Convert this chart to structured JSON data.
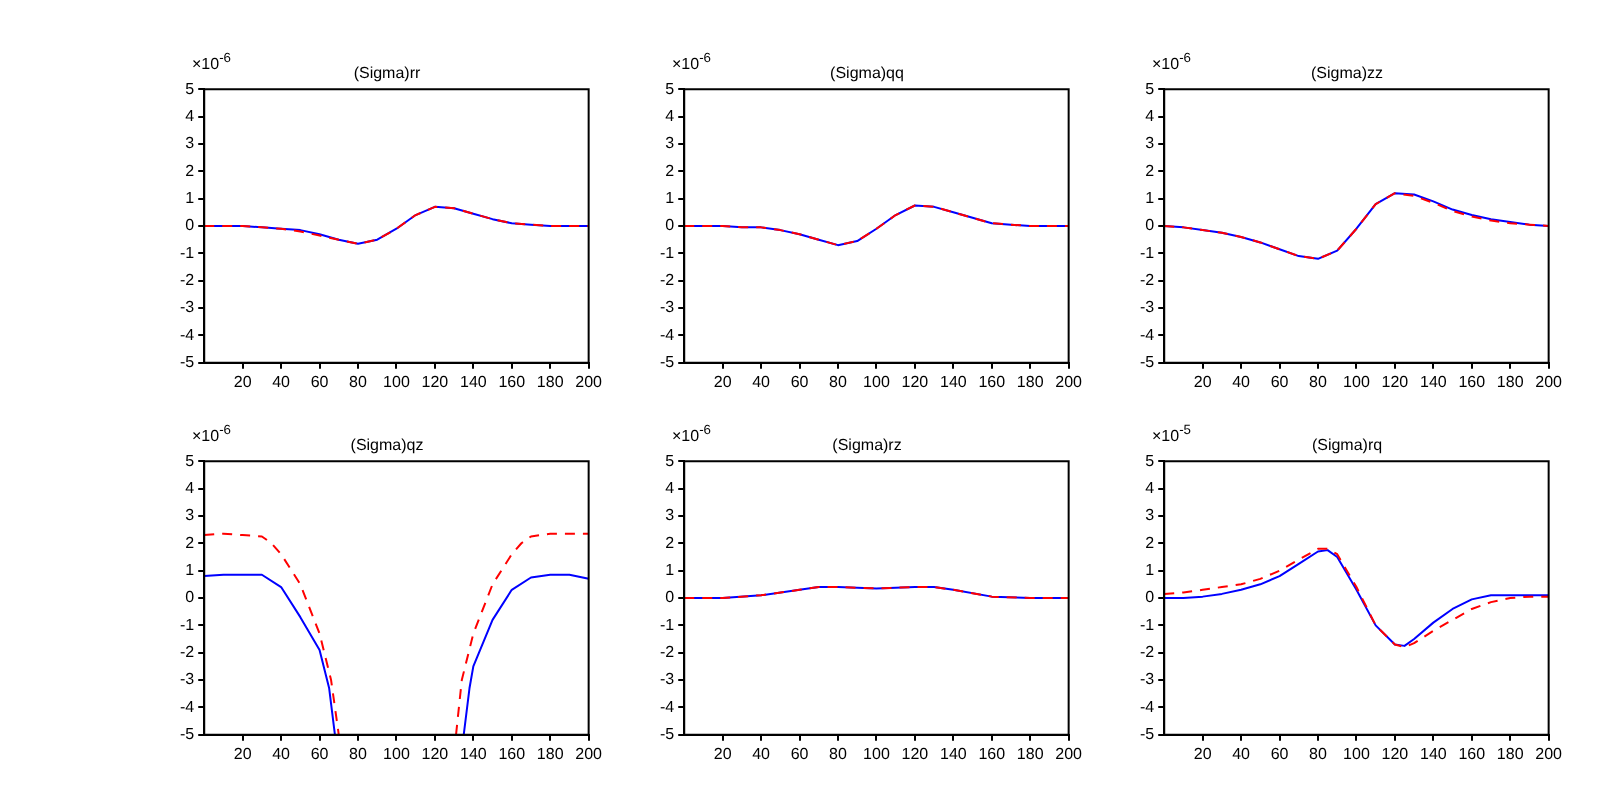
{
  "chart_data": [
    {
      "type": "line",
      "title": "(Sigma)rr",
      "annotations": [
        "×10$^{-6}$"
      ],
      "xlim": [
        0,
        200
      ],
      "xticks": [
        20,
        40,
        60,
        80,
        100,
        120,
        140,
        160,
        180,
        200
      ],
      "ylim": [
        -5,
        5
      ],
      "yticks": [
        -5,
        -4,
        -3,
        -2,
        -1,
        0,
        1,
        2,
        3,
        4,
        5
      ],
      "grid": false,
      "marker": "none",
      "x": [
        0,
        10,
        20,
        30,
        40,
        50,
        60,
        70,
        80,
        90,
        100,
        110,
        120,
        130,
        140,
        150,
        160,
        170,
        180,
        190,
        200
      ],
      "series": [
        {
          "color": "#0000ff",
          "line_style": "solid",
          "values": [
            0,
            0,
            0,
            -0.05,
            -0.1,
            -0.15,
            -0.3,
            -0.5,
            -0.65,
            -0.5,
            -0.1,
            0.4,
            0.7,
            0.65,
            0.45,
            0.25,
            0.1,
            0.05,
            0,
            0,
            0
          ]
        },
        {
          "color": "#ff0000",
          "line_style": "dashed",
          "values": [
            0,
            0,
            0,
            -0.05,
            -0.1,
            -0.2,
            -0.35,
            -0.5,
            -0.65,
            -0.5,
            -0.1,
            0.4,
            0.7,
            0.65,
            0.45,
            0.25,
            0.1,
            0.05,
            0,
            0,
            0
          ]
        }
      ]
    },
    {
      "type": "line",
      "title": "(Sigma)qq",
      "annotations": [
        "×10$^{-6}$"
      ],
      "xlim": [
        0,
        200
      ],
      "xticks": [
        20,
        40,
        60,
        80,
        100,
        120,
        140,
        160,
        180,
        200
      ],
      "ylim": [
        -5,
        5
      ],
      "yticks": [
        -5,
        -4,
        -3,
        -2,
        -1,
        0,
        1,
        2,
        3,
        4,
        5
      ],
      "grid": false,
      "marker": "none",
      "x": [
        0,
        10,
        20,
        30,
        40,
        50,
        60,
        70,
        80,
        90,
        100,
        110,
        120,
        130,
        140,
        150,
        160,
        170,
        180,
        190,
        200
      ],
      "series": [
        {
          "color": "#0000ff",
          "line_style": "solid",
          "values": [
            0,
            0,
            0,
            -0.05,
            -0.05,
            -0.15,
            -0.3,
            -0.5,
            -0.7,
            -0.55,
            -0.1,
            0.4,
            0.75,
            0.7,
            0.5,
            0.3,
            0.1,
            0.05,
            0,
            0,
            0
          ]
        },
        {
          "color": "#ff0000",
          "line_style": "dashed",
          "values": [
            0,
            0,
            0,
            -0.05,
            -0.05,
            -0.15,
            -0.3,
            -0.5,
            -0.7,
            -0.55,
            -0.1,
            0.4,
            0.75,
            0.7,
            0.5,
            0.3,
            0.1,
            0.05,
            0,
            0,
            0
          ]
        }
      ]
    },
    {
      "type": "line",
      "title": "(Sigma)zz",
      "annotations": [
        "×10$^{-6}$"
      ],
      "xlim": [
        0,
        200
      ],
      "xticks": [
        20,
        40,
        60,
        80,
        100,
        120,
        140,
        160,
        180,
        200
      ],
      "ylim": [
        -5,
        5
      ],
      "yticks": [
        -5,
        -4,
        -3,
        -2,
        -1,
        0,
        1,
        2,
        3,
        4,
        5
      ],
      "grid": false,
      "marker": "none",
      "x": [
        0,
        10,
        20,
        30,
        40,
        50,
        60,
        70,
        80,
        90,
        100,
        110,
        120,
        130,
        140,
        150,
        160,
        170,
        180,
        190,
        200
      ],
      "series": [
        {
          "color": "#0000ff",
          "line_style": "solid",
          "values": [
            0,
            -0.05,
            -0.15,
            -0.25,
            -0.4,
            -0.6,
            -0.85,
            -1.1,
            -1.2,
            -0.9,
            -0.1,
            0.8,
            1.2,
            1.15,
            0.9,
            0.6,
            0.4,
            0.25,
            0.15,
            0.05,
            0
          ]
        },
        {
          "color": "#ff0000",
          "line_style": "dashed",
          "values": [
            0,
            -0.05,
            -0.15,
            -0.25,
            -0.4,
            -0.6,
            -0.85,
            -1.1,
            -1.2,
            -0.9,
            -0.1,
            0.8,
            1.2,
            1.1,
            0.85,
            0.55,
            0.35,
            0.2,
            0.1,
            0.05,
            0
          ]
        }
      ]
    },
    {
      "type": "line",
      "title": "(Sigma)qz",
      "annotations": [
        "×10$^{-6}$"
      ],
      "xlim": [
        0,
        200
      ],
      "xticks": [
        20,
        40,
        60,
        80,
        100,
        120,
        140,
        160,
        180,
        200
      ],
      "ylim": [
        -5,
        5
      ],
      "yticks": [
        -5,
        -4,
        -3,
        -2,
        -1,
        0,
        1,
        2,
        3,
        4,
        5
      ],
      "grid": false,
      "marker": "none",
      "series": [
        {
          "color": "#0000ff",
          "line_style": "solid",
          "x": [
            0,
            10,
            20,
            30,
            40,
            50,
            60,
            65,
            68,
            100,
            135,
            138,
            140,
            150,
            160,
            170,
            180,
            190,
            200
          ],
          "values": [
            0.8,
            0.85,
            0.85,
            0.85,
            0.4,
            -0.7,
            -1.9,
            -3.3,
            -5,
            null,
            -5,
            -3.3,
            -2.5,
            -0.8,
            0.3,
            0.75,
            0.85,
            0.85,
            0.7
          ]
        },
        {
          "color": "#ff0000",
          "line_style": "dashed",
          "x": [
            0,
            10,
            20,
            30,
            35,
            40,
            50,
            60,
            66,
            70,
            100,
            131,
            134,
            140,
            150,
            160,
            165,
            170,
            180,
            190,
            200
          ],
          "values": [
            2.3,
            2.35,
            2.3,
            2.25,
            2,
            1.6,
            0.5,
            -1.3,
            -3,
            -5,
            null,
            -5,
            -3,
            -1.3,
            0.5,
            1.6,
            2,
            2.25,
            2.35,
            2.35,
            2.35
          ]
        }
      ]
    },
    {
      "type": "line",
      "title": "(Sigma)rz",
      "annotations": [
        "×10$^{-6}$"
      ],
      "xlim": [
        0,
        200
      ],
      "xticks": [
        20,
        40,
        60,
        80,
        100,
        120,
        140,
        160,
        180,
        200
      ],
      "ylim": [
        -5,
        5
      ],
      "yticks": [
        -5,
        -4,
        -3,
        -2,
        -1,
        0,
        1,
        2,
        3,
        4,
        5
      ],
      "grid": false,
      "marker": "none",
      "x": [
        0,
        20,
        40,
        60,
        70,
        80,
        100,
        120,
        130,
        140,
        160,
        180,
        200
      ],
      "series": [
        {
          "color": "#0000ff",
          "line_style": "solid",
          "values": [
            0,
            0,
            0.1,
            0.3,
            0.4,
            0.4,
            0.35,
            0.4,
            0.4,
            0.3,
            0.05,
            0,
            0
          ]
        },
        {
          "color": "#ff0000",
          "line_style": "dashed",
          "values": [
            0,
            0,
            0.1,
            0.3,
            0.4,
            0.4,
            0.35,
            0.4,
            0.4,
            0.3,
            0.05,
            0,
            0
          ]
        }
      ]
    },
    {
      "type": "line",
      "title": "(Sigma)rq",
      "annotations": [
        "×10$^{-5}$"
      ],
      "xlim": [
        0,
        200
      ],
      "xticks": [
        20,
        40,
        60,
        80,
        100,
        120,
        140,
        160,
        180,
        200
      ],
      "ylim": [
        -5,
        5
      ],
      "yticks": [
        -5,
        -4,
        -3,
        -2,
        -1,
        0,
        1,
        2,
        3,
        4,
        5
      ],
      "grid": false,
      "marker": "none",
      "x": [
        0,
        10,
        20,
        30,
        40,
        50,
        60,
        70,
        80,
        85,
        90,
        100,
        110,
        120,
        125,
        130,
        140,
        150,
        160,
        170,
        180,
        190,
        200
      ],
      "series": [
        {
          "color": "#0000ff",
          "line_style": "solid",
          "values": [
            0,
            0,
            0.05,
            0.15,
            0.3,
            0.5,
            0.8,
            1.25,
            1.7,
            1.75,
            1.5,
            0.3,
            -1,
            -1.7,
            -1.75,
            -1.5,
            -0.9,
            -0.4,
            -0.05,
            0.1,
            0.1,
            0.1,
            0.1
          ]
        },
        {
          "color": "#ff0000",
          "line_style": "dashed",
          "values": [
            0.15,
            0.2,
            0.3,
            0.4,
            0.5,
            0.7,
            1,
            1.4,
            1.8,
            1.8,
            1.6,
            0.4,
            -1,
            -1.7,
            -1.8,
            -1.65,
            -1.2,
            -0.8,
            -0.4,
            -0.15,
            0,
            0.05,
            0.05
          ]
        }
      ]
    }
  ]
}
